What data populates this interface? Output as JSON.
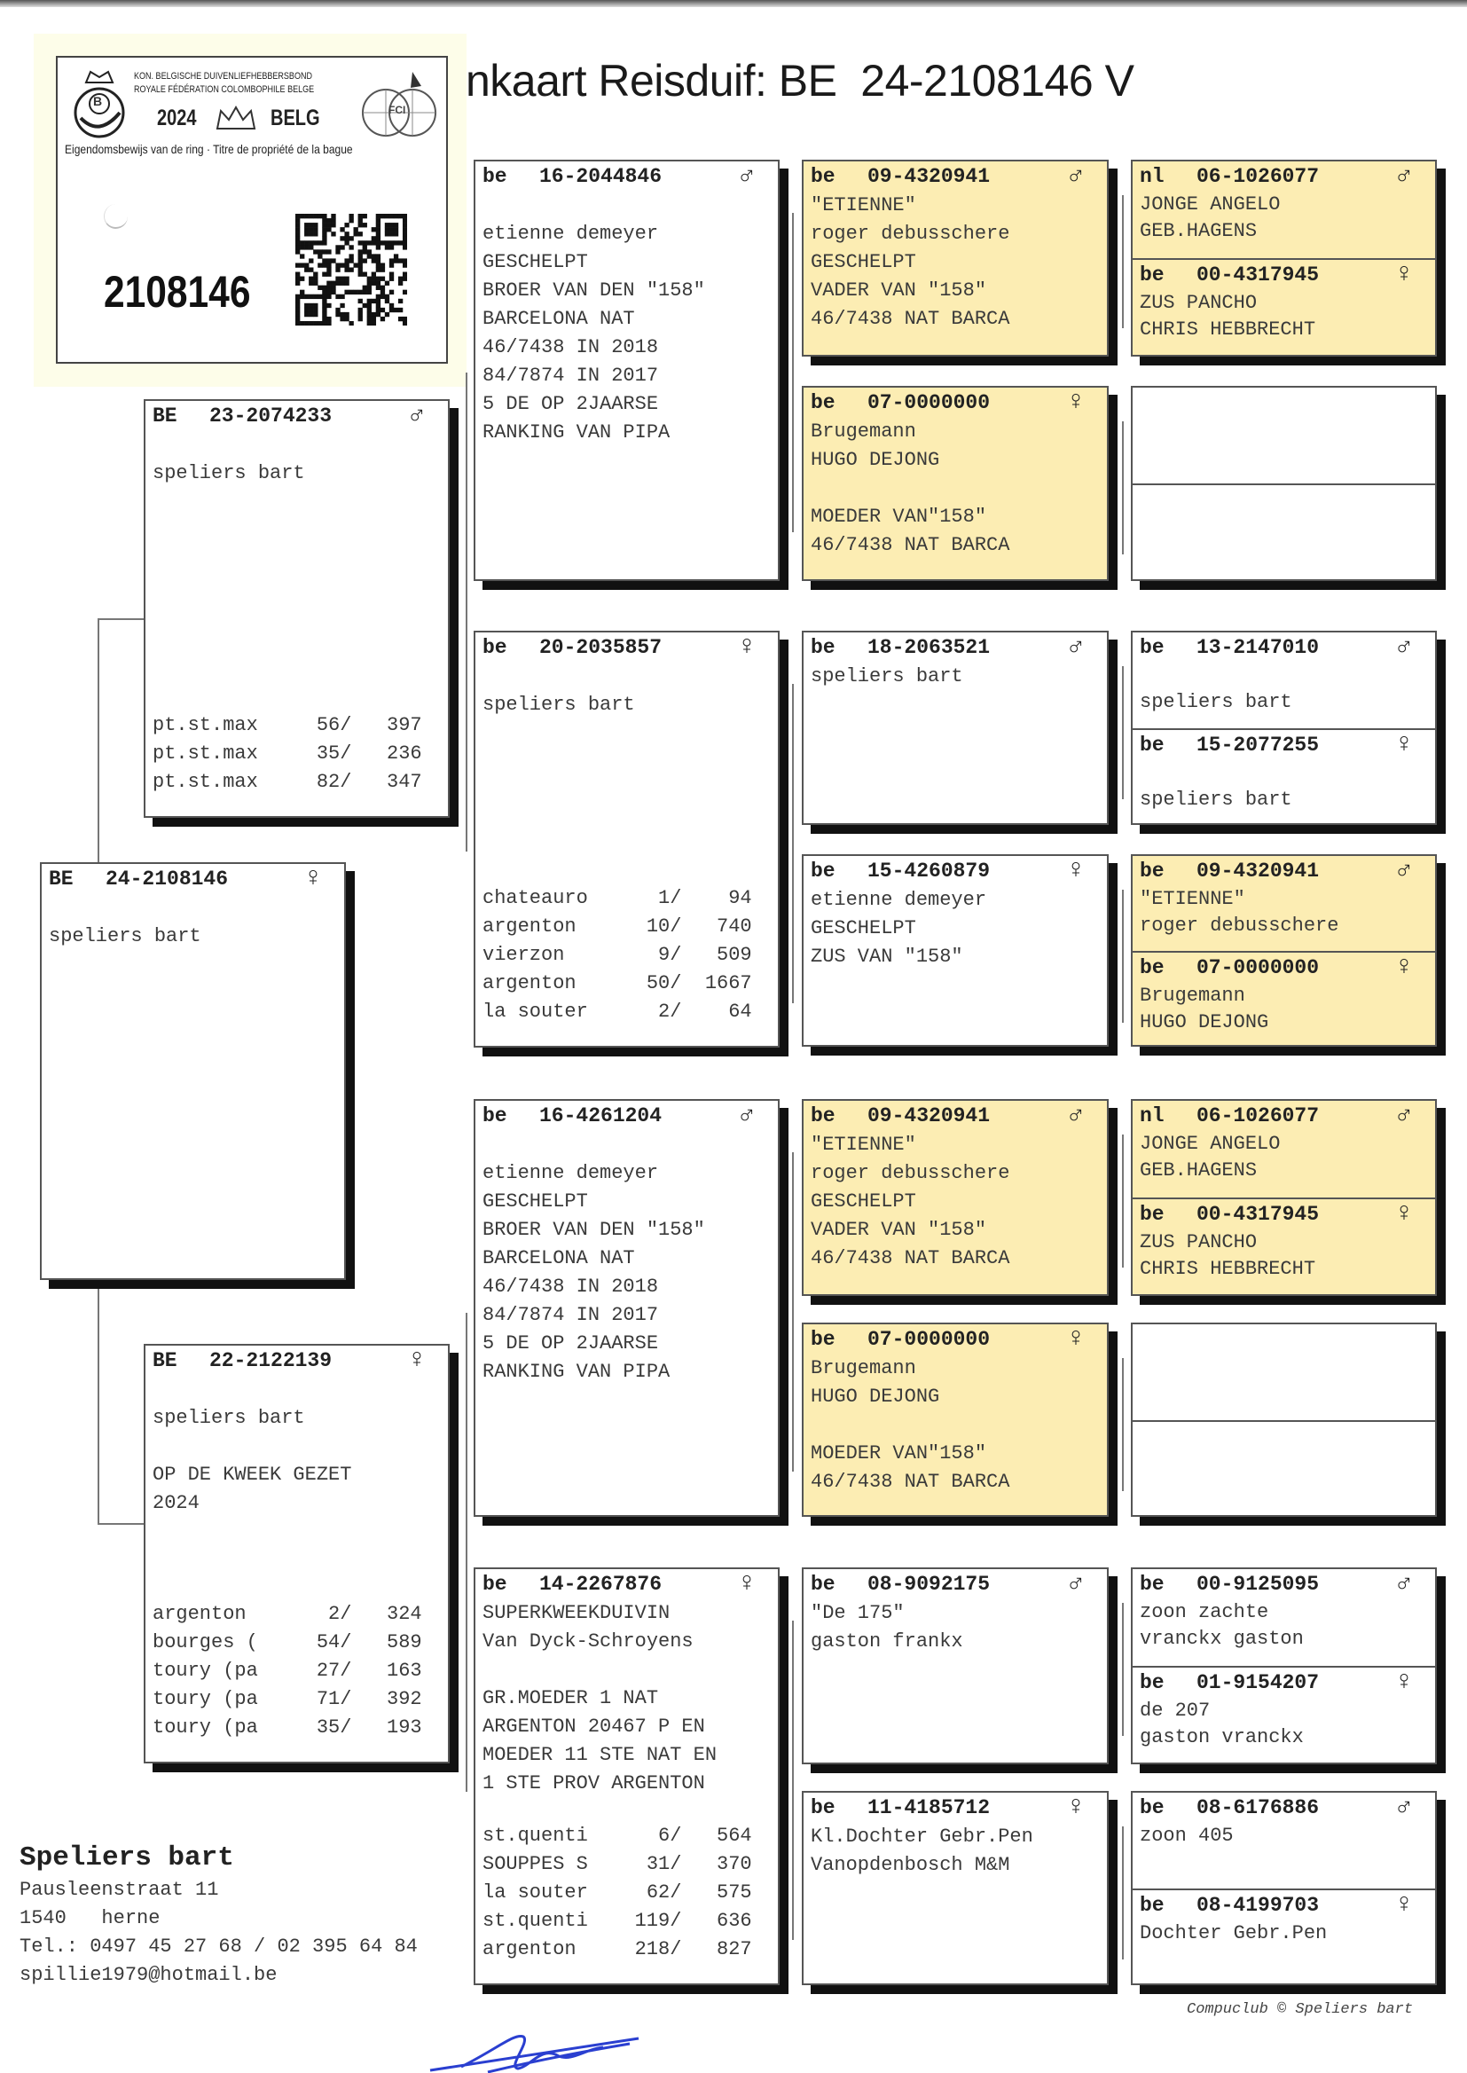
{
  "title": "nkaart Reisduif: BE  24-2108146 V",
  "ring_card": {
    "org_line1": "KON. BELGISCHE DUIVENLIEFHEBBERSBOND",
    "org_line2": "ROYALE FÉDÉRATION COLOMBOPHILE BELGE",
    "year": "2024",
    "country": "BELG",
    "ownership": "Eigendomsbewijs van de ring · Titre de propriété de la bague",
    "ring_number": "2108146",
    "logo_letter": "B",
    "logo_right": "FCI"
  },
  "colors": {
    "yellow_box": "#fcedb3",
    "shadow": "#111111",
    "signature": "#2a3fd0"
  },
  "subject": {
    "cc": "BE",
    "ring": "24-2108146",
    "sex": "♀",
    "lines": [
      "",
      "speliers bart"
    ]
  },
  "father": {
    "cc": "BE",
    "ring": "23-2074233",
    "sex": "♂",
    "lines": [
      "",
      "speliers bart"
    ],
    "results": [
      {
        "race": "pt.st.max",
        "place": "56/",
        "total": "397"
      },
      {
        "race": "pt.st.max",
        "place": "35/",
        "total": "236"
      },
      {
        "race": "pt.st.max",
        "place": "82/",
        "total": "347"
      }
    ]
  },
  "mother": {
    "cc": "BE",
    "ring": "22-2122139",
    "sex": "♀",
    "lines": [
      "",
      "speliers bart",
      "",
      "OP DE KWEEK GEZET",
      "2024"
    ],
    "results": [
      {
        "race": "argenton",
        "place": "2/",
        "total": "324"
      },
      {
        "race": "bourges (",
        "place": "54/",
        "total": "589"
      },
      {
        "race": "toury (pa",
        "place": "27/",
        "total": "163"
      },
      {
        "race": "toury (pa",
        "place": "71/",
        "total": "392"
      },
      {
        "race": "toury (pa",
        "place": "35/",
        "total": "193"
      }
    ]
  },
  "grandparents": [
    {
      "cc": "be",
      "ring": "16-2044846",
      "sex": "♂",
      "lines": [
        "",
        "etienne demeyer",
        "GESCHELPT",
        "BROER VAN DEN \"158\"",
        "BARCELONA NAT",
        "46/7438 IN 2018",
        "84/7874 IN 2017",
        "5 DE OP 2JAARSE",
        "RANKING VAN PIPA"
      ]
    },
    {
      "cc": "be",
      "ring": "20-2035857",
      "sex": "♀",
      "lines": [
        "",
        "speliers bart"
      ],
      "results": [
        {
          "race": "chateauro",
          "place": "1/",
          "total": "94"
        },
        {
          "race": "argenton",
          "place": "10/",
          "total": "740"
        },
        {
          "race": "vierzon",
          "place": "9/",
          "total": "509"
        },
        {
          "race": "argenton",
          "place": "50/",
          "total": "1667"
        },
        {
          "race": "la souter",
          "place": "2/",
          "total": "64"
        }
      ]
    },
    {
      "cc": "be",
      "ring": "16-4261204",
      "sex": "♂",
      "lines": [
        "",
        "etienne demeyer",
        "GESCHELPT",
        "BROER VAN DEN \"158\"",
        "BARCELONA NAT",
        "46/7438 IN 2018",
        "84/7874 IN 2017",
        "5 DE OP 2JAARSE",
        "RANKING VAN PIPA"
      ]
    },
    {
      "cc": "be",
      "ring": "14-2267876",
      "sex": "♀",
      "lines": [
        "SUPERKWEEKDUIVIN",
        "Van Dyck-Schroyens",
        "",
        "GR.MOEDER 1 NAT",
        "ARGENTON 20467 P EN",
        "MOEDER 11 STE NAT EN",
        "1 STE PROV ARGENTON"
      ],
      "results": [
        {
          "race": "st.quenti",
          "place": "6/",
          "total": "564"
        },
        {
          "race": "SOUPPES S",
          "place": "31/",
          "total": "370"
        },
        {
          "race": "la souter",
          "place": "62/",
          "total": "575"
        },
        {
          "race": "st.quenti",
          "place": "119/",
          "total": "636"
        },
        {
          "race": "argenton",
          "place": "218/",
          "total": "827"
        }
      ]
    }
  ],
  "great_grandparents": [
    {
      "cc": "be",
      "ring": "09-4320941",
      "sex": "♂",
      "yellow": true,
      "lines": [
        "\"ETIENNE\"",
        "roger debusschere",
        "GESCHELPT",
        "VADER VAN \"158\"",
        "46/7438 NAT BARCA"
      ]
    },
    {
      "cc": "be",
      "ring": "07-0000000",
      "sex": "♀",
      "yellow": true,
      "lines": [
        "Brugemann",
        "HUGO DEJONG",
        "",
        "MOEDER VAN\"158\"",
        "46/7438 NAT BARCA"
      ]
    },
    {
      "cc": "be",
      "ring": "18-2063521",
      "sex": "♂",
      "yellow": false,
      "lines": [
        "speliers bart"
      ]
    },
    {
      "cc": "be",
      "ring": "15-4260879",
      "sex": "♀",
      "yellow": false,
      "lines": [
        "etienne demeyer",
        "GESCHELPT",
        "ZUS VAN \"158\""
      ]
    },
    {
      "cc": "be",
      "ring": "09-4320941",
      "sex": "♂",
      "yellow": true,
      "lines": [
        "\"ETIENNE\"",
        "roger debusschere",
        "GESCHELPT",
        "VADER VAN \"158\"",
        "46/7438 NAT BARCA"
      ]
    },
    {
      "cc": "be",
      "ring": "07-0000000",
      "sex": "♀",
      "yellow": true,
      "lines": [
        "Brugemann",
        "HUGO DEJONG",
        "",
        "MOEDER VAN\"158\"",
        "46/7438 NAT BARCA"
      ]
    },
    {
      "cc": "be",
      "ring": "08-9092175",
      "sex": "♂",
      "yellow": false,
      "lines": [
        "\"De 175\"",
        "gaston frankx"
      ]
    },
    {
      "cc": "be",
      "ring": "11-4185712",
      "sex": "♀",
      "yellow": false,
      "lines": [
        "Kl.Dochter Gebr.Pen",
        "Vanopdenbosch M&M"
      ]
    }
  ],
  "gg_grandparents": [
    {
      "yellow": true,
      "top": {
        "cc": "nl",
        "ring": "06-1026077",
        "sex": "♂",
        "lines": [
          "JONGE ANGELO",
          "GEB.HAGENS"
        ]
      },
      "bottom": {
        "cc": "be",
        "ring": "00-4317945",
        "sex": "♀",
        "lines": [
          "ZUS PANCHO",
          "CHRIS HEBBRECHT"
        ]
      }
    },
    {
      "yellow": false,
      "top": null,
      "bottom": null
    },
    {
      "yellow": false,
      "top": {
        "cc": "be",
        "ring": "13-2147010",
        "sex": "♂",
        "lines": [
          "",
          "speliers bart"
        ]
      },
      "bottom": {
        "cc": "be",
        "ring": "15-2077255",
        "sex": "♀",
        "lines": [
          "",
          "speliers bart"
        ]
      }
    },
    {
      "yellow": true,
      "top": {
        "cc": "be",
        "ring": "09-4320941",
        "sex": "♂",
        "lines": [
          "\"ETIENNE\"",
          "roger debusschere"
        ]
      },
      "bottom": {
        "cc": "be",
        "ring": "07-0000000",
        "sex": "♀",
        "lines": [
          "Brugemann",
          "HUGO DEJONG"
        ]
      }
    },
    {
      "yellow": true,
      "top": {
        "cc": "nl",
        "ring": "06-1026077",
        "sex": "♂",
        "lines": [
          "JONGE ANGELO",
          "GEB.HAGENS"
        ]
      },
      "bottom": {
        "cc": "be",
        "ring": "00-4317945",
        "sex": "♀",
        "lines": [
          "ZUS PANCHO",
          "CHRIS HEBBRECHT"
        ]
      }
    },
    {
      "yellow": false,
      "top": null,
      "bottom": null
    },
    {
      "yellow": false,
      "top": {
        "cc": "be",
        "ring": "00-9125095",
        "sex": "♂",
        "lines": [
          "zoon zachte",
          "vranckx gaston"
        ]
      },
      "bottom": {
        "cc": "be",
        "ring": "01-9154207",
        "sex": "♀",
        "lines": [
          "de 207",
          "gaston vranckx"
        ]
      }
    },
    {
      "yellow": false,
      "top": {
        "cc": "be",
        "ring": "08-6176886",
        "sex": "♂",
        "lines": [
          "zoon 405"
        ]
      },
      "bottom": {
        "cc": "be",
        "ring": "08-4199703",
        "sex": "♀",
        "lines": [
          "Dochter Gebr.Pen"
        ]
      }
    }
  ],
  "owner": {
    "name": "Speliers bart",
    "street": "Pausleenstraat 11",
    "city": "1540   herne",
    "phone": "Tel.: 0497 45 27 68 / 02 395 64 84",
    "email": "spillie1979@hotmail.be"
  },
  "copyright": "Compuclub © Speliers bart"
}
